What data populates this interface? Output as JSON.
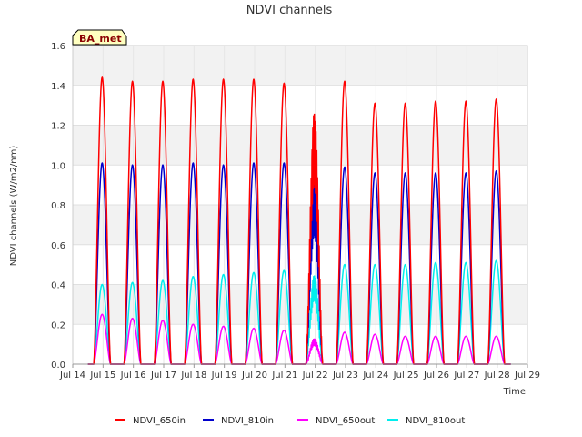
{
  "chart_data": {
    "type": "line",
    "title": "NDVI channels",
    "xlabel": "Time",
    "ylabel": "NDVI channels (W/m2/nm)",
    "badge": "BA_met",
    "ylim": [
      0,
      1.6
    ],
    "yticks": [
      "0.0",
      "0.2",
      "0.4",
      "0.6",
      "0.8",
      "1.0",
      "1.2",
      "1.4",
      "1.6"
    ],
    "xticks": [
      "Jul 14",
      "Jul 15",
      "Jul 16",
      "Jul 17",
      "Jul 18",
      "Jul 19",
      "Jul 20",
      "Jul 21",
      "Jul 22",
      "Jul 23",
      "Jul 24",
      "Jul 25",
      "Jul 26",
      "Jul 27",
      "Jul 28",
      "Jul 29"
    ],
    "x_start_day": 14,
    "x_end_day": 29,
    "peak_days": [
      15,
      16,
      17,
      18,
      19,
      20,
      21,
      22,
      23,
      24,
      25,
      26,
      27,
      28
    ],
    "series": [
      {
        "name": "NDVI_650in",
        "color": "#ff0000",
        "peaks": [
          1.44,
          1.42,
          1.42,
          1.43,
          1.43,
          1.43,
          1.41,
          1.27,
          1.42,
          1.31,
          1.31,
          1.32,
          1.32,
          1.33
        ]
      },
      {
        "name": "NDVI_810in",
        "color": "#0000cc",
        "peaks": [
          1.01,
          1.0,
          1.0,
          1.01,
          1.0,
          1.01,
          1.01,
          0.91,
          0.99,
          0.96,
          0.96,
          0.96,
          0.96,
          0.97
        ]
      },
      {
        "name": "NDVI_650out",
        "color": "#ff00ff",
        "peaks": [
          0.25,
          0.23,
          0.22,
          0.2,
          0.19,
          0.18,
          0.17,
          0.13,
          0.16,
          0.15,
          0.14,
          0.14,
          0.14,
          0.14
        ]
      },
      {
        "name": "NDVI_810out",
        "color": "#00eeee",
        "peaks": [
          0.4,
          0.41,
          0.42,
          0.44,
          0.45,
          0.46,
          0.47,
          0.45,
          0.5,
          0.5,
          0.5,
          0.51,
          0.51,
          0.52
        ]
      }
    ]
  }
}
